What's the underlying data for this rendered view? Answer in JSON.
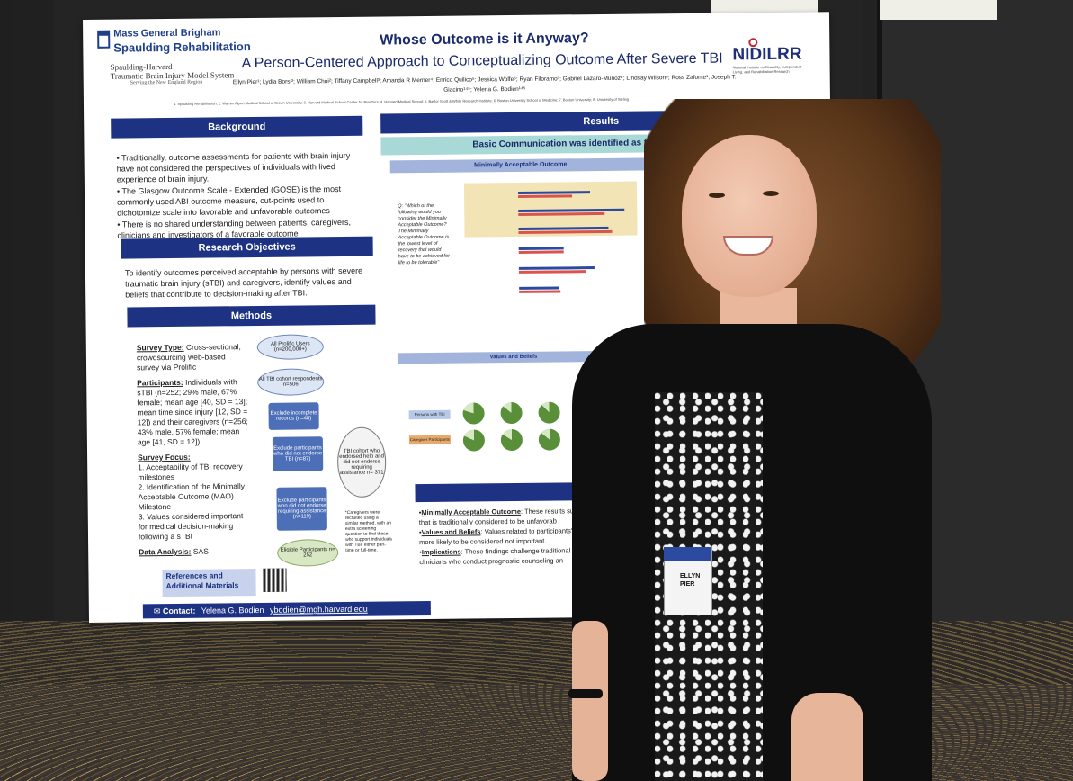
{
  "poster": {
    "org_line1": "Mass General Brigham",
    "org_line2": "Spaulding Rehabilitation",
    "sh_line1": "Spaulding-Harvard",
    "sh_line2": "Traumatic Brain Injury Model System",
    "sh_line3": "Serving the New England Region",
    "title": "Whose Outcome is it Anyway?",
    "subtitle": "A Person-Centered Approach to Conceptualizing Outcome After Severe TBI",
    "authors": "Ellyn Pier¹; Lydia Borsi²; William Choi²; Tiffany Campbell³; Amanda R Merner⁴; Enrico Quilico⁵; Jessica Wolfe⁶; Ryan Filoramo⁷; Gabriel Lazaro-Muñoz⁴; Lindsay Wilson⁸; Ross Zafonte¹; Joseph T. Giacino¹⁴⁵; Yelena G. Bodien¹⁴⁵",
    "affiliations": "1. Spaulding Rehabilitation; 2. Warren Alpert Medical School of Brown University; 3. Harvard Medical School Center for Bioethics; 4. Harvard Medical School; 5. Baylor Scott & White Research Institute; 6. Boston University School of Medicine; 7. Boston University; 8. University of Stirling",
    "nidilrr": "NIDILRR",
    "nidilrr_sub": "National Institute on Disability, Independent Living, and Rehabilitation Research",
    "sections": {
      "background": "Background",
      "objectives": "Research Objectives",
      "methods": "Methods",
      "results": "Results",
      "conclusions": "Co"
    },
    "background_bullets": [
      "Traditionally, outcome assessments for patients with brain injury have not considered the perspectives of individuals with lived experience of brain injury.",
      "The Glasgow Outcome Scale - Extended (GOSE) is the most commonly used ABI outcome measure, cut-points used to dichotomize scale into favorable and unfavorable outcomes",
      "There is no shared understanding between patients, caregivers, clinicians and investigators of a favorable outcome"
    ],
    "objectives_text": "To identify outcomes perceived acceptable by persons with severe traumatic brain injury (sTBI) and caregivers, identify values and beliefs that contribute to decision-making after TBI.",
    "methods": {
      "survey_type_label": "Survey Type:",
      "survey_type": "Cross-sectional, crowdsourcing web-based survey via Prolific",
      "participants_label": "Participants:",
      "participants": "Individuals with sTBI (n=252; 29% male, 67% female; mean age [40, SD = 13]; mean time since injury [12, SD = 12]) and their caregivers (n=256; 43% male, 57% female; mean age [41, SD = 12]).",
      "focus_label": "Survey Focus:",
      "focus_items": [
        "1. Acceptability of TBI recovery milestones",
        "2. Identification of the Minimally Acceptable Outcome (MAO) Milestone",
        "3. Values considered important for medical decision-making following a sTBI"
      ],
      "analysis_label": "Data Analysis:",
      "analysis": "SAS"
    },
    "flow": {
      "n1": "All Prolific Users (n=200,000+)",
      "n2": "All TBI cohort respondents n=506",
      "b1": "Exclude incomplete records (n=48)",
      "b2": "Exclude participants who did not endorse TBI (n=87)",
      "b3": "Exclude participants who did not endorse requiring assistance (n=119)",
      "end": "Eligible Participants n= 252",
      "side": "TBI cohort who endorsed help and did not endorse requiring assistance n= 371",
      "note": "*Caregivers were recruited using a similar method, with an extra screening question to find those who support individuals with TBI, either part-time or full-time."
    },
    "references": "References and Additional Materials",
    "contact_label": "Contact:",
    "contact_name": "Yelena G. Bodien",
    "contact_email": "ybodien@mgh.harvard.edu",
    "basic_comm": "Basic Communication was identified as the Minimally Accep",
    "mao_head": "Minimally Acceptable Outcome",
    "question": "Q: \"Which of the following would you consider the Minimally Acceptable Outcome? The Minimally Acceptable Outcome is the lowest level of recovery that would have to be achieved for life to be tolerable\"",
    "values_head": "Values and Beliefs",
    "label_tbi": "Persons with TBI",
    "label_caregiver": "Caregiver Participants",
    "conclusions": [
      {
        "label": "Minimally Acceptable Outcome",
        "text": ": These results suggest th outcome that is traditionally considered to be unfavorab"
      },
      {
        "label": "Values and Beliefs",
        "text": ": Values related to participants' intrin factors were more likely to be considered not important."
      },
      {
        "label": "Implications",
        "text": ": These findings challenge traditional views among clinicians who conduct prognostic counseling an"
      }
    ]
  },
  "badge": {
    "name": "ELLYN PIER"
  }
}
